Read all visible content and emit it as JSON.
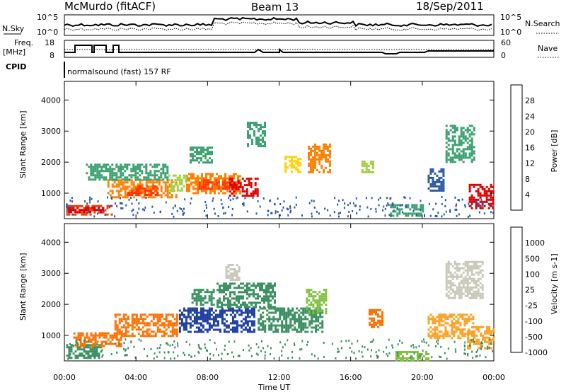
{
  "header": {
    "station": "McMurdo (fitACF)",
    "beam": "Beam 13",
    "date": "18/Sep/2011"
  },
  "panels": {
    "sky_label": "N.Sky",
    "search_label": "N.Search",
    "sky_ticks": [
      "10^5",
      "10^0"
    ],
    "freq_label_1": "Freq.",
    "freq_label_2": "[MHz]",
    "freq_ticks": [
      "18",
      "8"
    ],
    "nave_label": "Nave",
    "nave_ticks": [
      "60",
      "0"
    ],
    "cpid_label": "CPID",
    "cpid_value": "normalsound (fast) 157 RF"
  },
  "chart_data": [
    {
      "type": "heatmap",
      "title": "Power",
      "ylabel": "Slant Range [km]",
      "xlabel": "Time UT",
      "x_ticks": [
        "00:00",
        "04:00",
        "08:00",
        "12:00",
        "16:00",
        "20:00",
        "00:00"
      ],
      "y_ticks": [
        1000,
        2000,
        3000,
        4000
      ],
      "ylim": [
        180,
        4600
      ],
      "xlim_hours": [
        0,
        24
      ],
      "colorbar": {
        "label": "Power [dB]",
        "ticks": [
          "28",
          "24",
          "20",
          "16",
          "12",
          "8",
          "4"
        ],
        "colors": [
          "#dd0000",
          "#ff3a00",
          "#ff8000",
          "#ffd000",
          "#a0d040",
          "#3aa070",
          "#2a58a8",
          "#0000ff"
        ]
      },
      "regions": [
        {
          "t0": 0.1,
          "t1": 2.6,
          "r0": 280,
          "r1": 620,
          "color": "#ff3a00"
        },
        {
          "t0": 0.2,
          "t1": 2.2,
          "r0": 380,
          "r1": 560,
          "color": "#dd0000"
        },
        {
          "t0": 2.4,
          "t1": 6.2,
          "r0": 850,
          "r1": 1450,
          "color": "#ff8000"
        },
        {
          "t0": 3.5,
          "t1": 5.2,
          "r0": 950,
          "r1": 1250,
          "color": "#ff3a00"
        },
        {
          "t0": 1.2,
          "t1": 5.8,
          "r0": 1450,
          "r1": 1950,
          "color": "#3aa070"
        },
        {
          "t0": 6.8,
          "t1": 9.8,
          "r0": 1000,
          "r1": 1650,
          "color": "#ff8000"
        },
        {
          "t0": 7.5,
          "t1": 9.6,
          "r0": 1150,
          "r1": 1450,
          "color": "#ff3a00"
        },
        {
          "t0": 9.2,
          "t1": 10.8,
          "r0": 900,
          "r1": 1500,
          "color": "#dd0000"
        },
        {
          "t0": 7.0,
          "t1": 8.3,
          "r0": 2000,
          "r1": 2500,
          "color": "#3aa070"
        },
        {
          "t0": 10.2,
          "t1": 11.2,
          "r0": 2500,
          "r1": 3300,
          "color": "#3aa070"
        },
        {
          "t0": 12.3,
          "t1": 13.2,
          "r0": 1700,
          "r1": 2200,
          "color": "#ffd000"
        },
        {
          "t0": 13.6,
          "t1": 14.8,
          "r0": 1650,
          "r1": 2600,
          "color": "#ff8000"
        },
        {
          "t0": 16.6,
          "t1": 17.3,
          "r0": 1650,
          "r1": 2050,
          "color": "#a0d040"
        },
        {
          "t0": 20.3,
          "t1": 21.2,
          "r0": 1100,
          "r1": 1800,
          "color": "#2a58a8"
        },
        {
          "t0": 21.3,
          "t1": 22.9,
          "r0": 2000,
          "r1": 3200,
          "color": "#3aa070"
        },
        {
          "t0": 22.6,
          "t1": 24.0,
          "r0": 500,
          "r1": 1300,
          "color": "#dd0000"
        },
        {
          "t0": 18.2,
          "t1": 20.0,
          "r0": 250,
          "r1": 650,
          "color": "#3aa070"
        },
        {
          "t0": 5.8,
          "t1": 6.8,
          "r0": 1100,
          "r1": 1600,
          "color": "#a0d040"
        }
      ]
    },
    {
      "type": "heatmap",
      "title": "Velocity",
      "ylabel": "Slant Range [km]",
      "xlabel": "Time UT",
      "x_ticks": [
        "00:00",
        "04:00",
        "08:00",
        "12:00",
        "16:00",
        "20:00",
        "00:00"
      ],
      "y_ticks": [
        1000,
        2000,
        3000,
        4000
      ],
      "ylim": [
        180,
        4600
      ],
      "xlim_hours": [
        0,
        24
      ],
      "colorbar": {
        "label": "Velocity [m s-1]",
        "ticks": [
          "1000",
          "500",
          "100",
          "25",
          "-25",
          "-100",
          "-500",
          "-1000"
        ],
        "colors": [
          "#2040a0",
          "#3a78b8",
          "#3a9060",
          "#80c040",
          "#c8c8b8",
          "#ffa020",
          "#ff7000",
          "#e01010"
        ]
      },
      "regions": [
        {
          "t0": 0.1,
          "t1": 2.0,
          "r0": 280,
          "r1": 720,
          "color": "#3a9060"
        },
        {
          "t0": 0.5,
          "t1": 3.2,
          "r0": 650,
          "r1": 1100,
          "color": "#ff7000"
        },
        {
          "t0": 2.8,
          "t1": 6.3,
          "r0": 1000,
          "r1": 1700,
          "color": "#ff7000"
        },
        {
          "t0": 6.4,
          "t1": 10.6,
          "r0": 1100,
          "r1": 1900,
          "color": "#2040a0"
        },
        {
          "t0": 10.8,
          "t1": 14.4,
          "r0": 1100,
          "r1": 1900,
          "color": "#3a9060"
        },
        {
          "t0": 8.5,
          "t1": 11.8,
          "r0": 1900,
          "r1": 2700,
          "color": "#3a9060"
        },
        {
          "t0": 13.5,
          "t1": 14.6,
          "r0": 1700,
          "r1": 2500,
          "color": "#80c040"
        },
        {
          "t0": 17.0,
          "t1": 17.8,
          "r0": 1250,
          "r1": 1850,
          "color": "#ff7000"
        },
        {
          "t0": 20.3,
          "t1": 22.8,
          "r0": 900,
          "r1": 1700,
          "color": "#ffa020"
        },
        {
          "t0": 21.3,
          "t1": 23.4,
          "r0": 2200,
          "r1": 3400,
          "color": "#c8c8b8"
        },
        {
          "t0": 9.0,
          "t1": 9.8,
          "r0": 2800,
          "r1": 3300,
          "color": "#c8c8b8"
        },
        {
          "t0": 18.5,
          "t1": 20.3,
          "r0": 200,
          "r1": 500,
          "color": "#80c040"
        },
        {
          "t0": 22.5,
          "t1": 24.0,
          "r0": 600,
          "r1": 1300,
          "color": "#ffa020"
        },
        {
          "t0": 7.1,
          "t1": 8.4,
          "r0": 2000,
          "r1": 2500,
          "color": "#3a9060"
        }
      ]
    }
  ]
}
